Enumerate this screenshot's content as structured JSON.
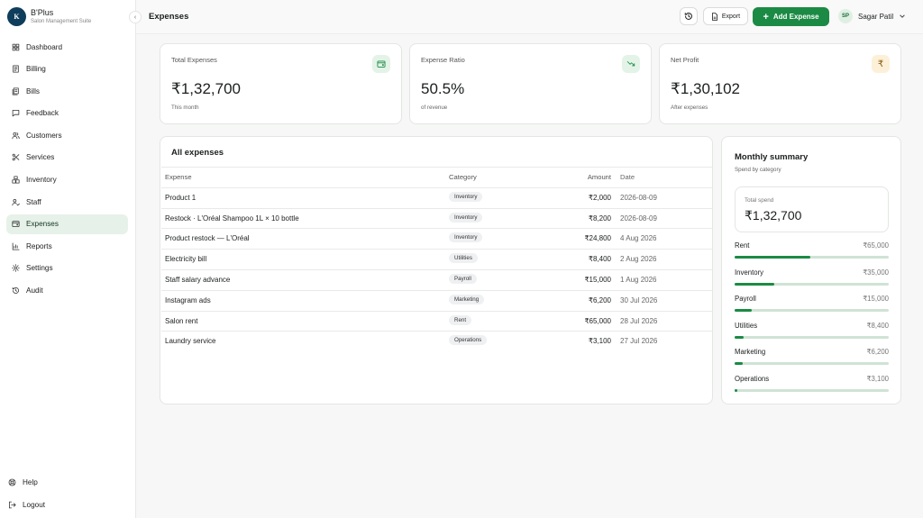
{
  "brand": {
    "logo_text": "K",
    "name": "B'Plus",
    "subtitle": "Salon Management Suite"
  },
  "sidebar": {
    "items": [
      {
        "label": "Dashboard",
        "icon": "grid-icon"
      },
      {
        "label": "Billing",
        "icon": "receipt-icon"
      },
      {
        "label": "Bills",
        "icon": "bills-icon"
      },
      {
        "label": "Feedback",
        "icon": "message-icon"
      },
      {
        "label": "Customers",
        "icon": "users-icon"
      },
      {
        "label": "Services",
        "icon": "scissors-icon"
      },
      {
        "label": "Inventory",
        "icon": "boxes-icon"
      },
      {
        "label": "Staff",
        "icon": "staff-icon"
      },
      {
        "label": "Expenses",
        "icon": "wallet-icon",
        "active": true
      },
      {
        "label": "Reports",
        "icon": "chart-icon"
      },
      {
        "label": "Settings",
        "icon": "gear-icon"
      },
      {
        "label": "Audit",
        "icon": "history-icon"
      }
    ],
    "bottom": [
      {
        "label": "Help",
        "icon": "help-icon"
      },
      {
        "label": "Logout",
        "icon": "logout-icon"
      }
    ]
  },
  "topbar": {
    "title": "Expenses",
    "export_label": "Export",
    "add_label": "Add Expense",
    "user_initials": "SP",
    "user_name": "Sagar Patil"
  },
  "stats": [
    {
      "label": "Total Expenses",
      "value": "₹1,32,700",
      "sub": "This month",
      "icon": "wallet-icon",
      "icon_bg": "#e4f3e8",
      "icon_color": "#1b8a44"
    },
    {
      "label": "Expense Ratio",
      "value": "50.5%",
      "sub": "of revenue",
      "icon": "trending-down-icon",
      "icon_bg": "#e4f3e8",
      "icon_color": "#1b8a44"
    },
    {
      "label": "Net Profit",
      "value": "₹1,30,102",
      "sub": "After expenses",
      "icon": "rupee-icon",
      "icon_glyph": "₹",
      "icon_bg": "#fdf0d8",
      "icon_color": "#8a5a10"
    }
  ],
  "expenses": {
    "title": "All expenses",
    "columns": [
      "Expense",
      "Category",
      "Amount",
      "Date"
    ],
    "rows": [
      {
        "expense": "Product 1",
        "category": "Inventory",
        "amount": "₹2,000",
        "date": "2026-08-09"
      },
      {
        "expense": "Restock · L'Oréal Shampoo 1L × 10 bottle",
        "category": "Inventory",
        "amount": "₹8,200",
        "date": "2026-08-09"
      },
      {
        "expense": "Product restock — L'Oréal",
        "category": "Inventory",
        "amount": "₹24,800",
        "date": "4 Aug 2026"
      },
      {
        "expense": "Electricity bill",
        "category": "Utilities",
        "amount": "₹8,400",
        "date": "2 Aug 2026"
      },
      {
        "expense": "Staff salary advance",
        "category": "Payroll",
        "amount": "₹15,000",
        "date": "1 Aug 2026"
      },
      {
        "expense": "Instagram ads",
        "category": "Marketing",
        "amount": "₹6,200",
        "date": "30 Jul 2026"
      },
      {
        "expense": "Salon rent",
        "category": "Rent",
        "amount": "₹65,000",
        "date": "28 Jul 2026"
      },
      {
        "expense": "Laundry service",
        "category": "Operations",
        "amount": "₹3,100",
        "date": "27 Jul 2026"
      }
    ]
  },
  "summary": {
    "title": "Monthly summary",
    "subtitle": "Spend by category",
    "total_label": "Total spend",
    "total_value": "₹1,32,700",
    "categories": [
      {
        "name": "Rent",
        "amount": "₹65,000",
        "share": 0.49
      },
      {
        "name": "Inventory",
        "amount": "₹35,000",
        "share": 0.26
      },
      {
        "name": "Payroll",
        "amount": "₹15,000",
        "share": 0.11
      },
      {
        "name": "Utilities",
        "amount": "₹8,400",
        "share": 0.06
      },
      {
        "name": "Marketing",
        "amount": "₹6,200",
        "share": 0.05
      },
      {
        "name": "Operations",
        "amount": "₹3,100",
        "share": 0.02
      }
    ]
  }
}
